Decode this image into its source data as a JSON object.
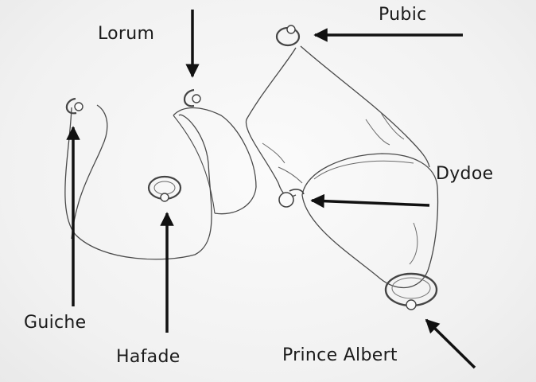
{
  "labels": {
    "lorum": "Lorum",
    "pubic": "Pubic",
    "dydoe": "Dydoe",
    "guiche": "Guiche",
    "hafade": "Hafade",
    "prince_albert": "Prince Albert"
  },
  "colors": {
    "ink": "#1b1b1b",
    "line": "#4a4a4a",
    "background": "#f4f4f4"
  }
}
